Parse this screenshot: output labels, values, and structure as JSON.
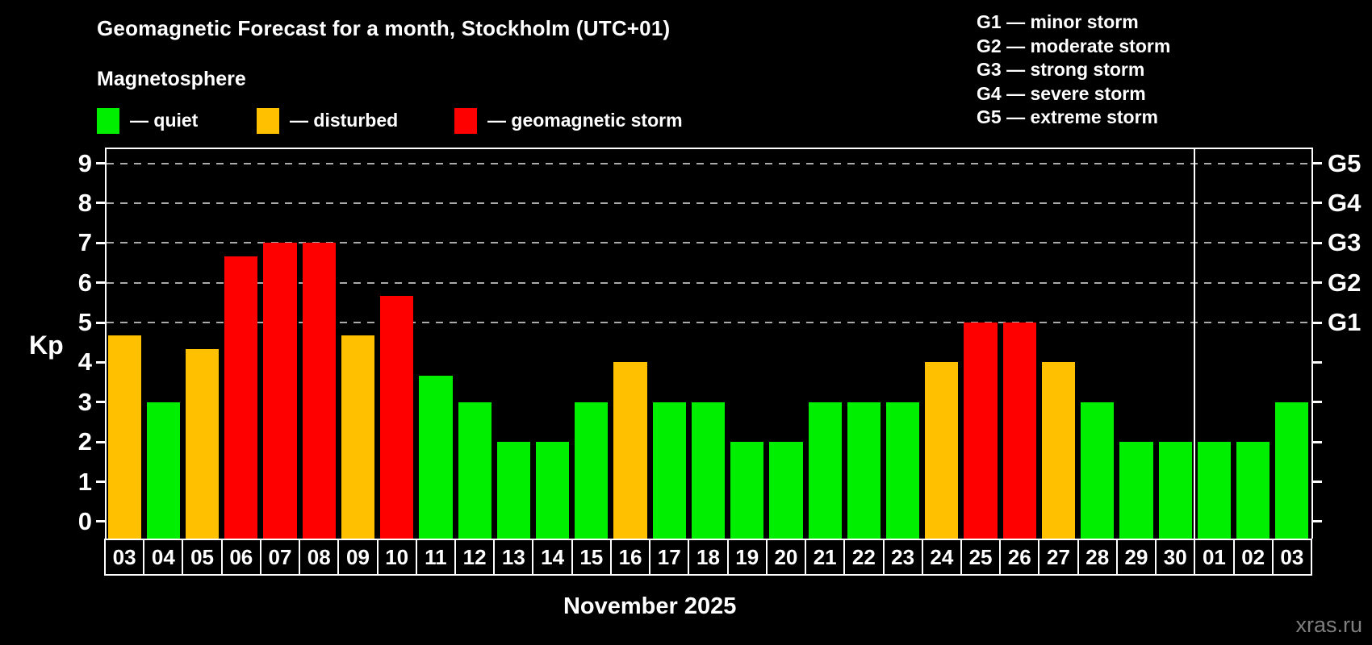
{
  "header": {
    "title": "Geomagnetic Forecast for a month, Stockholm (UTC+01)",
    "subtitle": "Magnetosphere"
  },
  "legend": {
    "items": [
      {
        "key": "quiet",
        "label": "— quiet",
        "color": "#00ee00"
      },
      {
        "key": "disturbed",
        "label": "— disturbed",
        "color": "#ffc000"
      },
      {
        "key": "storm",
        "label": "— geomagnetic storm",
        "color": "#ff0000"
      }
    ]
  },
  "storm_scale_legend": [
    "G1 — minor storm",
    "G2 — moderate storm",
    "G3 — strong storm",
    "G4 — severe storm",
    "G5 — extreme storm"
  ],
  "footer": {
    "caption": "November 2025",
    "watermark": "xras.ru"
  },
  "chart_data": {
    "type": "bar",
    "title": "Geomagnetic Forecast for a month, Stockholm (UTC+01)",
    "ylabel": "Kp",
    "categories": [
      "03",
      "04",
      "05",
      "06",
      "07",
      "08",
      "09",
      "10",
      "11",
      "12",
      "13",
      "14",
      "15",
      "16",
      "17",
      "18",
      "19",
      "20",
      "21",
      "22",
      "23",
      "24",
      "25",
      "26",
      "27",
      "28",
      "29",
      "30",
      "01",
      "02",
      "03"
    ],
    "values": [
      4.67,
      3,
      4.33,
      6.67,
      7,
      7,
      4.67,
      5.67,
      3.67,
      3,
      2,
      2,
      3,
      4,
      3,
      3,
      2,
      2,
      3,
      3,
      3,
      4,
      5,
      5,
      4,
      3,
      2,
      2,
      2,
      2,
      3
    ],
    "statuses": [
      "disturbed",
      "quiet",
      "disturbed",
      "storm",
      "storm",
      "storm",
      "disturbed",
      "storm",
      "quiet",
      "quiet",
      "quiet",
      "quiet",
      "quiet",
      "disturbed",
      "quiet",
      "quiet",
      "quiet",
      "quiet",
      "quiet",
      "quiet",
      "quiet",
      "disturbed",
      "storm",
      "storm",
      "disturbed",
      "quiet",
      "quiet",
      "quiet",
      "quiet",
      "quiet",
      "quiet"
    ],
    "ylim": [
      0,
      9.35
    ],
    "y_ticks": [
      0,
      1,
      2,
      3,
      4,
      5,
      6,
      7,
      8,
      9
    ],
    "gridline_levels": [
      5,
      6,
      7,
      8,
      9
    ],
    "right_axis_labels": [
      {
        "level": 5,
        "label": "G1"
      },
      {
        "level": 6,
        "label": "G2"
      },
      {
        "level": 7,
        "label": "G3"
      },
      {
        "level": 8,
        "label": "G4"
      },
      {
        "level": 9,
        "label": "G5"
      }
    ],
    "month_separator_before_index": 28,
    "x_caption": "November 2025",
    "grid_on": true,
    "legend_position": "top",
    "colors": {
      "quiet": "#00ee00",
      "disturbed": "#ffc000",
      "storm": "#ff0000",
      "grid": "#aaaaaa",
      "axis": "#ffffff"
    }
  }
}
